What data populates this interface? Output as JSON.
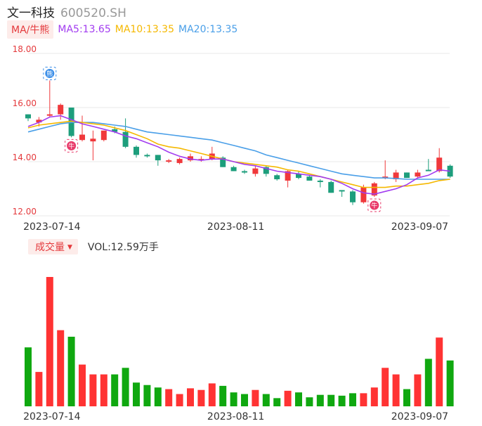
{
  "stock": {
    "name": "文一科技",
    "code": "600520.SH"
  },
  "ma": {
    "button_label": "MA/牛熊",
    "ma5": {
      "label": "MA5:13.65",
      "color": "#a23cf0"
    },
    "ma10": {
      "label": "MA10:13.35",
      "color": "#f5b800"
    },
    "ma20": {
      "label": "MA20:13.35",
      "color": "#4a9fe8"
    }
  },
  "volume": {
    "button_label": "成交量",
    "label": "VOL:12.59万手"
  },
  "colors": {
    "up": "#f0383b",
    "down": "#1d9e7c",
    "vol_up": "#ff3333",
    "vol_down": "#10a810",
    "grid": "#e8e8e8"
  },
  "icons": {
    "bull_marker": "bull-icon",
    "bear_marker": "bear-icon"
  },
  "chart_data": {
    "type": "candlestick",
    "ylim": [
      12.0,
      18.0
    ],
    "yticks": [
      "12.00",
      "14.00",
      "16.00",
      "18.00"
    ],
    "x_tick_labels": [
      {
        "index": 2,
        "label": "2023-07-14"
      },
      {
        "index": 19,
        "label": "2023-08-11"
      },
      {
        "index": 36,
        "label": "2023-09-07"
      }
    ],
    "markers": [
      {
        "index": 2,
        "type": "bear",
        "glyph": "熊"
      },
      {
        "index": 4,
        "type": "bull",
        "glyph": "牛"
      },
      {
        "index": 32,
        "type": "bull",
        "glyph": "牛"
      }
    ],
    "candles": [
      {
        "o": 15.75,
        "h": 15.75,
        "l": 15.5,
        "c": 15.6
      },
      {
        "o": 15.45,
        "h": 15.65,
        "l": 15.3,
        "c": 15.55
      },
      {
        "o": 15.7,
        "h": 17.0,
        "l": 15.65,
        "c": 15.75
      },
      {
        "o": 15.75,
        "h": 16.15,
        "l": 15.55,
        "c": 16.1
      },
      {
        "o": 16.0,
        "h": 16.0,
        "l": 14.9,
        "c": 14.95
      },
      {
        "o": 14.8,
        "h": 15.7,
        "l": 14.75,
        "c": 15.0
      },
      {
        "o": 14.75,
        "h": 15.15,
        "l": 14.05,
        "c": 14.85
      },
      {
        "o": 14.8,
        "h": 15.1,
        "l": 14.75,
        "c": 15.15
      },
      {
        "o": 15.2,
        "h": 15.3,
        "l": 15.05,
        "c": 15.1
      },
      {
        "o": 15.1,
        "h": 15.6,
        "l": 14.5,
        "c": 14.55
      },
      {
        "o": 14.55,
        "h": 14.6,
        "l": 14.15,
        "c": 14.25
      },
      {
        "o": 14.25,
        "h": 14.3,
        "l": 14.15,
        "c": 14.2
      },
      {
        "o": 14.25,
        "h": 14.25,
        "l": 13.85,
        "c": 14.05
      },
      {
        "o": 14.0,
        "h": 14.1,
        "l": 13.95,
        "c": 14.05
      },
      {
        "o": 13.95,
        "h": 14.15,
        "l": 13.9,
        "c": 14.1
      },
      {
        "o": 14.05,
        "h": 14.3,
        "l": 14.0,
        "c": 14.2
      },
      {
        "o": 14.05,
        "h": 14.2,
        "l": 14.0,
        "c": 14.1
      },
      {
        "o": 14.1,
        "h": 14.55,
        "l": 14.05,
        "c": 14.3
      },
      {
        "o": 14.15,
        "h": 14.2,
        "l": 13.8,
        "c": 13.8
      },
      {
        "o": 13.8,
        "h": 13.85,
        "l": 13.65,
        "c": 13.65
      },
      {
        "o": 13.65,
        "h": 13.7,
        "l": 13.55,
        "c": 13.6
      },
      {
        "o": 13.55,
        "h": 13.85,
        "l": 13.45,
        "c": 13.75
      },
      {
        "o": 13.8,
        "h": 13.85,
        "l": 13.45,
        "c": 13.55
      },
      {
        "o": 13.5,
        "h": 13.55,
        "l": 13.3,
        "c": 13.35
      },
      {
        "o": 13.3,
        "h": 13.7,
        "l": 13.05,
        "c": 13.65
      },
      {
        "o": 13.55,
        "h": 13.65,
        "l": 13.35,
        "c": 13.4
      },
      {
        "o": 13.45,
        "h": 13.5,
        "l": 13.3,
        "c": 13.3
      },
      {
        "o": 13.3,
        "h": 13.35,
        "l": 13.05,
        "c": 13.25
      },
      {
        "o": 13.25,
        "h": 13.3,
        "l": 12.85,
        "c": 12.85
      },
      {
        "o": 12.95,
        "h": 12.95,
        "l": 12.7,
        "c": 12.9
      },
      {
        "o": 12.9,
        "h": 12.95,
        "l": 12.4,
        "c": 12.5
      },
      {
        "o": 12.5,
        "h": 13.15,
        "l": 12.45,
        "c": 13.05
      },
      {
        "o": 12.75,
        "h": 13.25,
        "l": 12.7,
        "c": 13.2
      },
      {
        "o": 13.4,
        "h": 14.05,
        "l": 13.35,
        "c": 13.45
      },
      {
        "o": 13.35,
        "h": 13.7,
        "l": 13.25,
        "c": 13.6
      },
      {
        "o": 13.6,
        "h": 13.6,
        "l": 13.4,
        "c": 13.4
      },
      {
        "o": 13.45,
        "h": 13.7,
        "l": 13.4,
        "c": 13.6
      },
      {
        "o": 13.7,
        "h": 14.1,
        "l": 13.65,
        "c": 13.65
      },
      {
        "o": 13.65,
        "h": 14.5,
        "l": 13.6,
        "c": 14.15
      },
      {
        "o": 13.85,
        "h": 13.9,
        "l": 13.4,
        "c": 13.45
      }
    ],
    "ma5": [
      15.3,
      15.45,
      15.65,
      15.7,
      15.55,
      15.4,
      15.3,
      15.2,
      15.1,
      14.95,
      14.85,
      14.7,
      14.55,
      14.35,
      14.2,
      14.1,
      14.05,
      14.1,
      14.1,
      14.0,
      13.9,
      13.85,
      13.75,
      13.65,
      13.6,
      13.55,
      13.5,
      13.45,
      13.35,
      13.2,
      13.0,
      12.85,
      12.8,
      12.9,
      13.0,
      13.15,
      13.4,
      13.5,
      13.7,
      13.65
    ],
    "ma10": [
      15.25,
      15.35,
      15.4,
      15.45,
      15.5,
      15.45,
      15.4,
      15.35,
      15.25,
      15.15,
      15.0,
      14.85,
      14.65,
      14.55,
      14.5,
      14.4,
      14.3,
      14.2,
      14.1,
      14.0,
      13.95,
      13.9,
      13.85,
      13.8,
      13.7,
      13.65,
      13.55,
      13.45,
      13.35,
      13.25,
      13.15,
      13.05,
      13.05,
      13.05,
      13.1,
      13.1,
      13.15,
      13.2,
      13.3,
      13.35
    ],
    "ma20": [
      15.1,
      15.2,
      15.3,
      15.4,
      15.45,
      15.45,
      15.45,
      15.4,
      15.35,
      15.3,
      15.2,
      15.1,
      15.05,
      15.0,
      14.95,
      14.9,
      14.85,
      14.8,
      14.7,
      14.6,
      14.5,
      14.4,
      14.25,
      14.15,
      14.05,
      13.95,
      13.85,
      13.75,
      13.65,
      13.55,
      13.5,
      13.45,
      13.4,
      13.4,
      13.38,
      13.35,
      13.35,
      13.35,
      13.35,
      13.35
    ],
    "volumes": [
      7.2,
      4.2,
      15.8,
      9.3,
      8.5,
      5.1,
      3.9,
      3.9,
      3.9,
      4.7,
      2.9,
      2.6,
      2.3,
      2.1,
      1.5,
      2.2,
      2.0,
      2.8,
      2.5,
      1.7,
      1.5,
      2.0,
      1.5,
      1.0,
      1.9,
      1.7,
      1.1,
      1.4,
      1.4,
      1.3,
      1.6,
      1.6,
      2.3,
      4.7,
      3.9,
      2.1,
      3.9,
      5.8,
      8.4,
      5.6
    ]
  }
}
